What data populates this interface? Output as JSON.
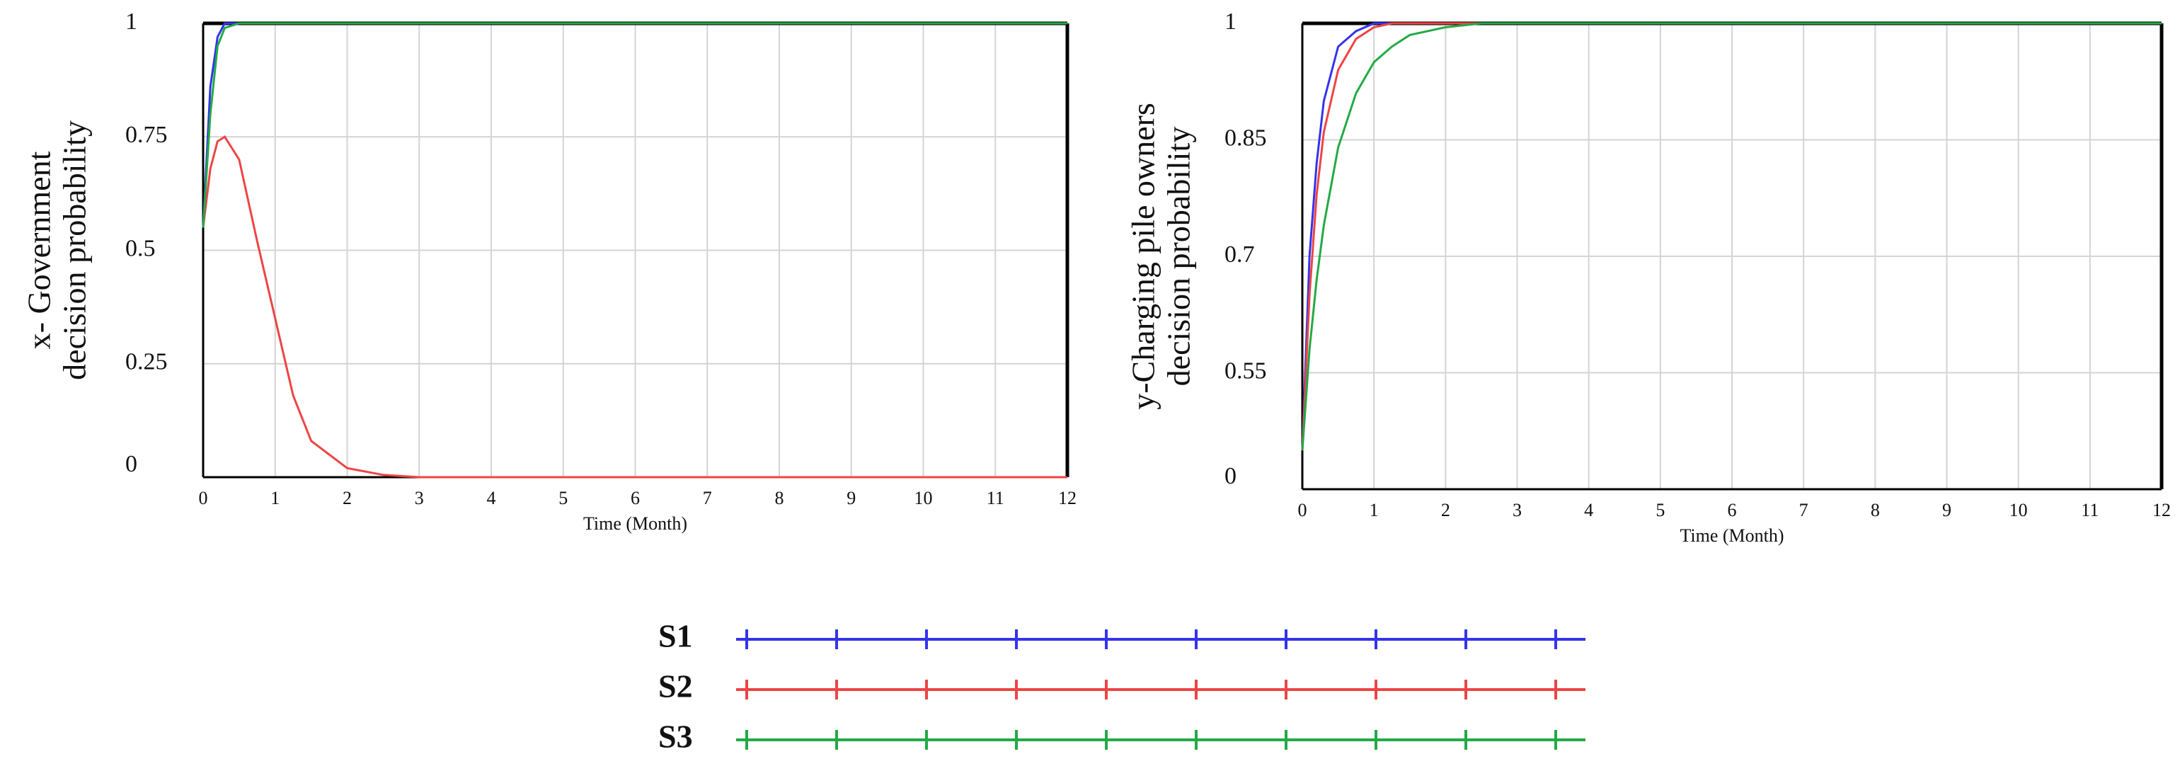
{
  "chart_data": [
    {
      "type": "line",
      "ylabel": [
        "x-  Government",
        "decision probability"
      ],
      "xlabel": "Time (Month)",
      "x": [
        0,
        0.1,
        0.2,
        0.3,
        0.5,
        0.75,
        1,
        1.25,
        1.5,
        2,
        2.5,
        3,
        4,
        5,
        6,
        7,
        8,
        9,
        10,
        11,
        12
      ],
      "xlim": [
        0,
        12
      ],
      "xticks": [
        0,
        1,
        2,
        3,
        4,
        5,
        6,
        7,
        8,
        9,
        10,
        11,
        12
      ],
      "ylim": [
        0,
        1
      ],
      "yticks": [
        0,
        0.25,
        0.5,
        0.75,
        1
      ],
      "grid": true,
      "series": [
        {
          "name": "S1",
          "color": "#3333ee",
          "values": [
            0.55,
            0.86,
            0.97,
            1,
            1,
            1,
            1,
            1,
            1,
            1,
            1,
            1,
            1,
            1,
            1,
            1,
            1,
            1,
            1,
            1,
            1
          ]
        },
        {
          "name": "S2",
          "color": "#ee4444",
          "values": [
            0.55,
            0.68,
            0.74,
            0.75,
            0.7,
            0.52,
            0.35,
            0.18,
            0.08,
            0.02,
            0.005,
            0,
            0,
            0,
            0,
            0,
            0,
            0,
            0,
            0,
            0
          ]
        },
        {
          "name": "S3",
          "color": "#22aa44",
          "values": [
            0.55,
            0.8,
            0.95,
            0.99,
            1,
            1,
            1,
            1,
            1,
            1,
            1,
            1,
            1,
            1,
            1,
            1,
            1,
            1,
            1,
            1,
            1
          ]
        }
      ]
    },
    {
      "type": "line",
      "ylabel": [
        "y-Charging pile owners",
        "decision probability"
      ],
      "xlabel": "Time (Month)",
      "x": [
        0,
        0.1,
        0.2,
        0.3,
        0.5,
        0.75,
        1,
        1.25,
        1.5,
        2,
        2.5,
        3,
        4,
        5,
        6,
        7,
        8,
        9,
        10,
        11,
        12
      ],
      "xlim": [
        0,
        12
      ],
      "xticks": [
        0,
        1,
        2,
        3,
        4,
        5,
        6,
        7,
        8,
        9,
        10,
        11,
        12
      ],
      "ylim": [
        0.4,
        1
      ],
      "yticks": [
        {
          "value": 0.4,
          "label": "0"
        },
        0.55,
        0.7,
        0.85,
        1
      ],
      "grid": true,
      "series": [
        {
          "name": "S1",
          "color": "#3333ee",
          "values": [
            0.45,
            0.7,
            0.82,
            0.9,
            0.97,
            0.99,
            1,
            1,
            1,
            1,
            1,
            1,
            1,
            1,
            1,
            1,
            1,
            1,
            1,
            1,
            1
          ]
        },
        {
          "name": "S2",
          "color": "#ee4444",
          "values": [
            0.45,
            0.65,
            0.78,
            0.86,
            0.94,
            0.98,
            0.995,
            1,
            1,
            1,
            1,
            1,
            1,
            1,
            1,
            1,
            1,
            1,
            1,
            1,
            1
          ]
        },
        {
          "name": "S3",
          "color": "#22aa44",
          "values": [
            0.45,
            0.58,
            0.67,
            0.74,
            0.84,
            0.91,
            0.95,
            0.97,
            0.985,
            0.995,
            1,
            1,
            1,
            1,
            1,
            1,
            1,
            1,
            1,
            1,
            1
          ]
        }
      ]
    }
  ]
}
